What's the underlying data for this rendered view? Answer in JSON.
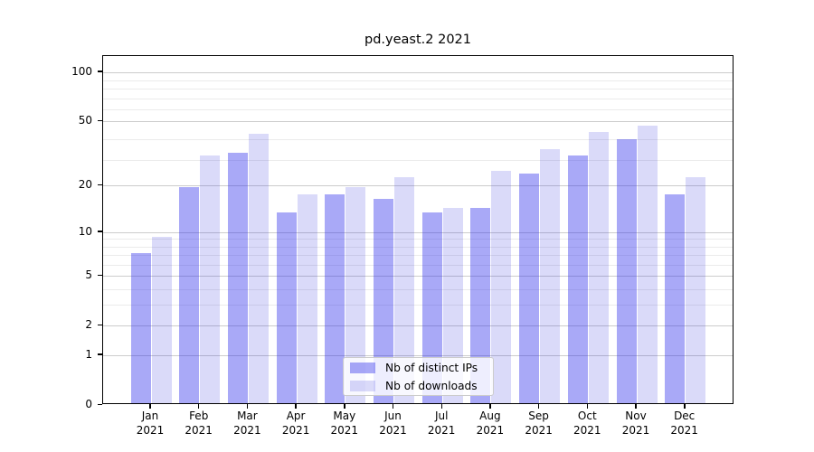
{
  "title": "pd.yeast.2 2021",
  "chart_data": {
    "type": "bar",
    "title": "pd.yeast.2 2021",
    "categories": [
      "Jan 2021",
      "Feb 2021",
      "Mar 2021",
      "Apr 2021",
      "May 2021",
      "Jun 2021",
      "Jul 2021",
      "Aug 2021",
      "Sep 2021",
      "Oct 2021",
      "Nov 2021",
      "Dec 2021"
    ],
    "series": [
      {
        "name": "Nb of distinct IPs",
        "values": [
          7,
          19,
          31,
          13,
          17,
          16,
          13,
          14,
          23,
          30,
          38,
          17
        ],
        "color": "rgba(50,50,235,0.42)",
        "approx_hex": "#a9a9f0"
      },
      {
        "name": "Nb of downloads",
        "values": [
          9,
          30,
          41,
          17,
          19,
          22,
          14,
          24,
          33,
          42,
          46,
          22
        ],
        "color": "rgba(50,50,220,0.18)",
        "approx_hex": "#d8d8f8"
      }
    ],
    "xlabel": "",
    "ylabel": "",
    "y_scale": "log1p",
    "y_ticks": [
      0,
      1,
      2,
      5,
      10,
      20,
      50,
      100
    ],
    "y_minor_ticks": [
      3,
      4,
      6,
      7,
      8,
      9,
      29,
      39,
      59,
      69,
      79,
      89
    ],
    "ylim": [
      0,
      125
    ],
    "grid": true,
    "legend_position": "lower center",
    "legend_labels": [
      "Nb of distinct IPs",
      "Nb of downloads"
    ]
  },
  "colors": {
    "bar_distinct_ips": "#a9a9f0",
    "bar_downloads": "#d8d8f8",
    "grid_major": "#cccccc",
    "grid_minor": "#ebebeb",
    "axis": "#000000",
    "legend_border": "#cccccc"
  }
}
